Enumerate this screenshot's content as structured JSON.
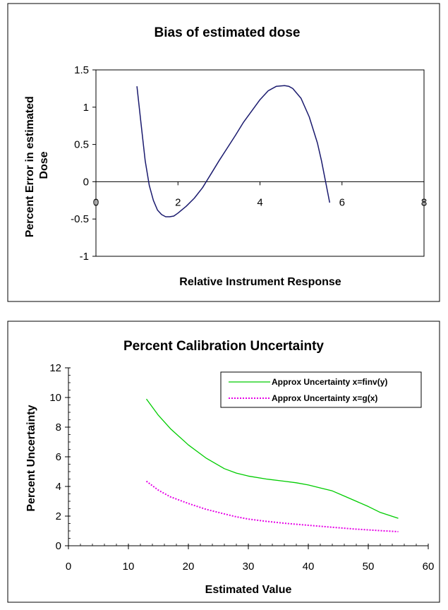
{
  "chart_data": [
    {
      "type": "line",
      "title": "Bias of estimated dose",
      "xlabel": "Relative Instrument Response",
      "ylabel": "Percent Error in estimated Dose",
      "xlim": [
        0,
        8
      ],
      "ylim": [
        -1,
        1.5
      ],
      "xticks": [
        0,
        2,
        4,
        6,
        8
      ],
      "yticks": [
        -1,
        -0.5,
        0,
        0.5,
        1,
        1.5
      ],
      "grid": false,
      "line_color": "#1a1a6e",
      "series": [
        {
          "x": [
            1.0,
            1.1,
            1.2,
            1.3,
            1.4,
            1.5,
            1.6,
            1.7,
            1.8,
            1.9,
            2.0,
            2.2,
            2.4,
            2.6,
            2.8,
            3.0,
            3.2,
            3.4,
            3.6,
            3.8,
            4.0,
            4.2,
            4.4,
            4.6,
            4.7,
            4.8,
            5.0,
            5.2,
            5.4,
            5.5,
            5.6,
            5.7
          ],
          "y": [
            1.28,
            0.78,
            0.28,
            -0.05,
            -0.25,
            -0.38,
            -0.44,
            -0.47,
            -0.47,
            -0.46,
            -0.42,
            -0.33,
            -0.22,
            -0.08,
            0.1,
            0.28,
            0.45,
            0.62,
            0.8,
            0.95,
            1.1,
            1.22,
            1.28,
            1.29,
            1.28,
            1.25,
            1.12,
            0.87,
            0.52,
            0.28,
            0.0,
            -0.28
          ]
        }
      ]
    },
    {
      "type": "line",
      "title": "Percent Calibration Uncertainty",
      "xlabel": "Estimated Value",
      "ylabel": "Percent Uncertainty",
      "xlim": [
        0,
        60
      ],
      "ylim": [
        0,
        12
      ],
      "xticks": [
        0,
        10,
        20,
        30,
        40,
        50,
        60
      ],
      "yticks": [
        0,
        2,
        4,
        6,
        8,
        10,
        12
      ],
      "grid": false,
      "legend": "top-right",
      "series": [
        {
          "name": "Approx Uncertainty x=finv(y)",
          "color": "#00cc00",
          "style": "solid",
          "x": [
            13,
            15,
            17,
            20,
            23,
            26,
            28,
            30,
            33,
            36,
            38,
            40,
            42,
            44,
            46,
            48,
            50,
            52,
            55
          ],
          "y": [
            9.9,
            8.8,
            7.9,
            6.8,
            5.9,
            5.2,
            4.9,
            4.7,
            4.5,
            4.35,
            4.25,
            4.1,
            3.9,
            3.7,
            3.35,
            3.0,
            2.65,
            2.25,
            1.85
          ]
        },
        {
          "name": "Approx Uncertainty x=g(x)",
          "color": "#e600e6",
          "style": "dotted",
          "x": [
            13,
            15,
            17,
            20,
            23,
            26,
            28,
            30,
            33,
            36,
            40,
            44,
            48,
            52,
            55
          ],
          "y": [
            4.35,
            3.75,
            3.3,
            2.85,
            2.45,
            2.15,
            1.95,
            1.8,
            1.65,
            1.52,
            1.38,
            1.25,
            1.12,
            1.02,
            0.95
          ]
        }
      ]
    }
  ]
}
